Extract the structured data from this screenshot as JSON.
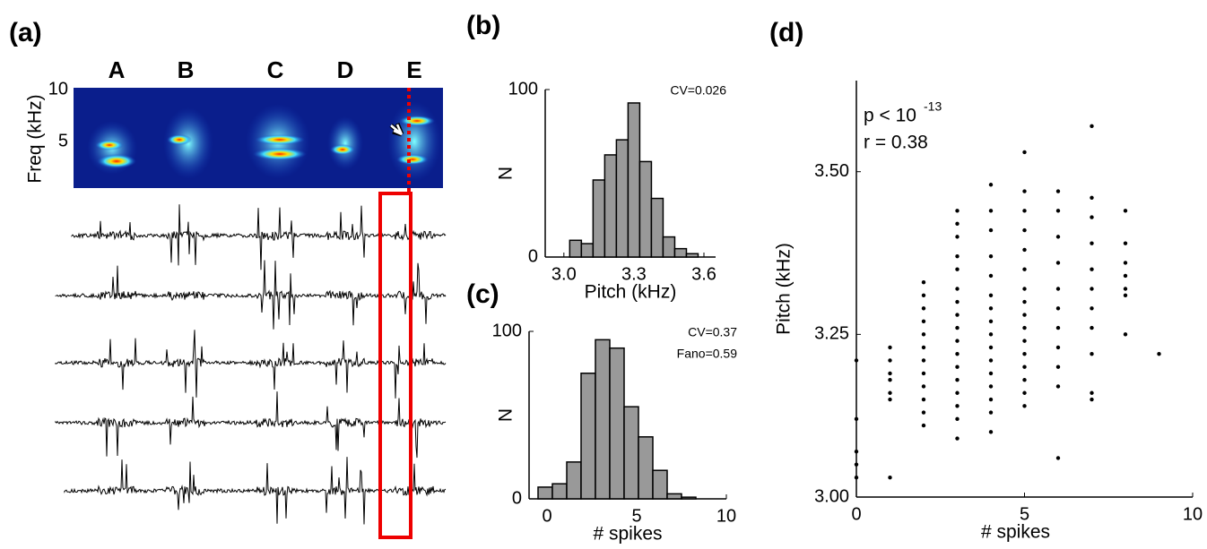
{
  "panel_a": {
    "panel_label": "(a)",
    "syllables": [
      "A",
      "B",
      "C",
      "D",
      "E"
    ],
    "ylabel": "Freq (kHz)",
    "yticks": [
      "10",
      "5"
    ]
  },
  "chart_data": [
    {
      "type": "histogram",
      "panel_label": "(b)",
      "xlabel": "Pitch (kHz)",
      "ylabel": "N",
      "annotations": [
        "CV=0.026"
      ],
      "bins": [
        3.025,
        3.075,
        3.125,
        3.175,
        3.225,
        3.275,
        3.325,
        3.375,
        3.425,
        3.475,
        3.525,
        3.575
      ],
      "values": [
        10,
        8,
        46,
        61,
        70,
        92,
        57,
        35,
        12,
        5,
        2
      ],
      "color": "#999999",
      "xlim": [
        2.92,
        3.65
      ],
      "xticks": [
        {
          "value": 3.0,
          "label": "3.0"
        },
        3.3,
        3.6
      ],
      "ylim": [
        0,
        100
      ],
      "yticks": [
        0,
        100
      ]
    },
    {
      "type": "histogram",
      "panel_label": "(c)",
      "xlabel": "# spikes",
      "ylabel": "N",
      "annotations": [
        "CV=0.37",
        "Fano=0.59"
      ],
      "bins": [
        -0.5,
        0.3,
        1.1,
        1.9,
        2.7,
        3.5,
        4.3,
        5.1,
        5.9,
        6.7,
        7.5,
        8.3
      ],
      "values": [
        7,
        9,
        22,
        75,
        95,
        90,
        55,
        37,
        17,
        3,
        1
      ],
      "color": "#999999",
      "xlim": [
        -1,
        10
      ],
      "xticks": [
        0,
        5,
        10
      ],
      "ylim": [
        0,
        100
      ],
      "yticks": [
        0,
        100
      ]
    },
    {
      "type": "scatter",
      "panel_label": "(d)",
      "xlabel": "# spikes",
      "ylabel": "Pitch (kHz)",
      "annotations": [
        "p < 10",
        "-13",
        "r = 0.38"
      ],
      "x": [
        0,
        0,
        0,
        0,
        0,
        1,
        1,
        1,
        1,
        1,
        1,
        1,
        2,
        2,
        2,
        2,
        2,
        2,
        2,
        2,
        2,
        2,
        2,
        2,
        3,
        3,
        3,
        3,
        3,
        3,
        3,
        3,
        3,
        3,
        3,
        3,
        3,
        3,
        3,
        3,
        3,
        4,
        4,
        4,
        4,
        4,
        4,
        4,
        4,
        4,
        4,
        4,
        4,
        4,
        4,
        4,
        4,
        5,
        5,
        5,
        5,
        5,
        5,
        5,
        5,
        5,
        5,
        5,
        5,
        5,
        5,
        5,
        5,
        6,
        6,
        6,
        6,
        6,
        6,
        6,
        6,
        6,
        6,
        6,
        7,
        7,
        7,
        7,
        7,
        7,
        7,
        7,
        7,
        7,
        7,
        8,
        8,
        8,
        8,
        8,
        8,
        8,
        9
      ],
      "y": [
        3.21,
        3.12,
        3.07,
        3.05,
        3.03,
        3.23,
        3.21,
        3.19,
        3.18,
        3.16,
        3.15,
        3.03,
        3.33,
        3.31,
        3.29,
        3.27,
        3.25,
        3.23,
        3.21,
        3.19,
        3.17,
        3.15,
        3.13,
        3.11,
        3.44,
        3.42,
        3.4,
        3.37,
        3.35,
        3.32,
        3.3,
        3.28,
        3.26,
        3.24,
        3.22,
        3.2,
        3.18,
        3.16,
        3.14,
        3.12,
        3.09,
        3.48,
        3.44,
        3.41,
        3.37,
        3.34,
        3.31,
        3.29,
        3.27,
        3.25,
        3.23,
        3.21,
        3.19,
        3.17,
        3.15,
        3.13,
        3.1,
        3.53,
        3.47,
        3.44,
        3.41,
        3.38,
        3.35,
        3.32,
        3.3,
        3.28,
        3.26,
        3.24,
        3.22,
        3.2,
        3.18,
        3.16,
        3.14,
        3.47,
        3.44,
        3.4,
        3.36,
        3.32,
        3.29,
        3.26,
        3.23,
        3.2,
        3.17,
        3.06,
        3.57,
        3.46,
        3.43,
        3.39,
        3.35,
        3.32,
        3.29,
        3.26,
        3.22,
        3.16,
        3.15,
        3.44,
        3.39,
        3.36,
        3.34,
        3.32,
        3.31,
        3.25,
        3.22
      ],
      "color": "#000000",
      "xlim": [
        0,
        10
      ],
      "xticks": [
        0,
        5,
        10
      ],
      "ylim": [
        3.0,
        3.64
      ],
      "yticks": [
        {
          "value": 3.0,
          "label": "3.00"
        },
        3.25,
        {
          "value": 3.5,
          "label": "3.50"
        }
      ]
    }
  ]
}
